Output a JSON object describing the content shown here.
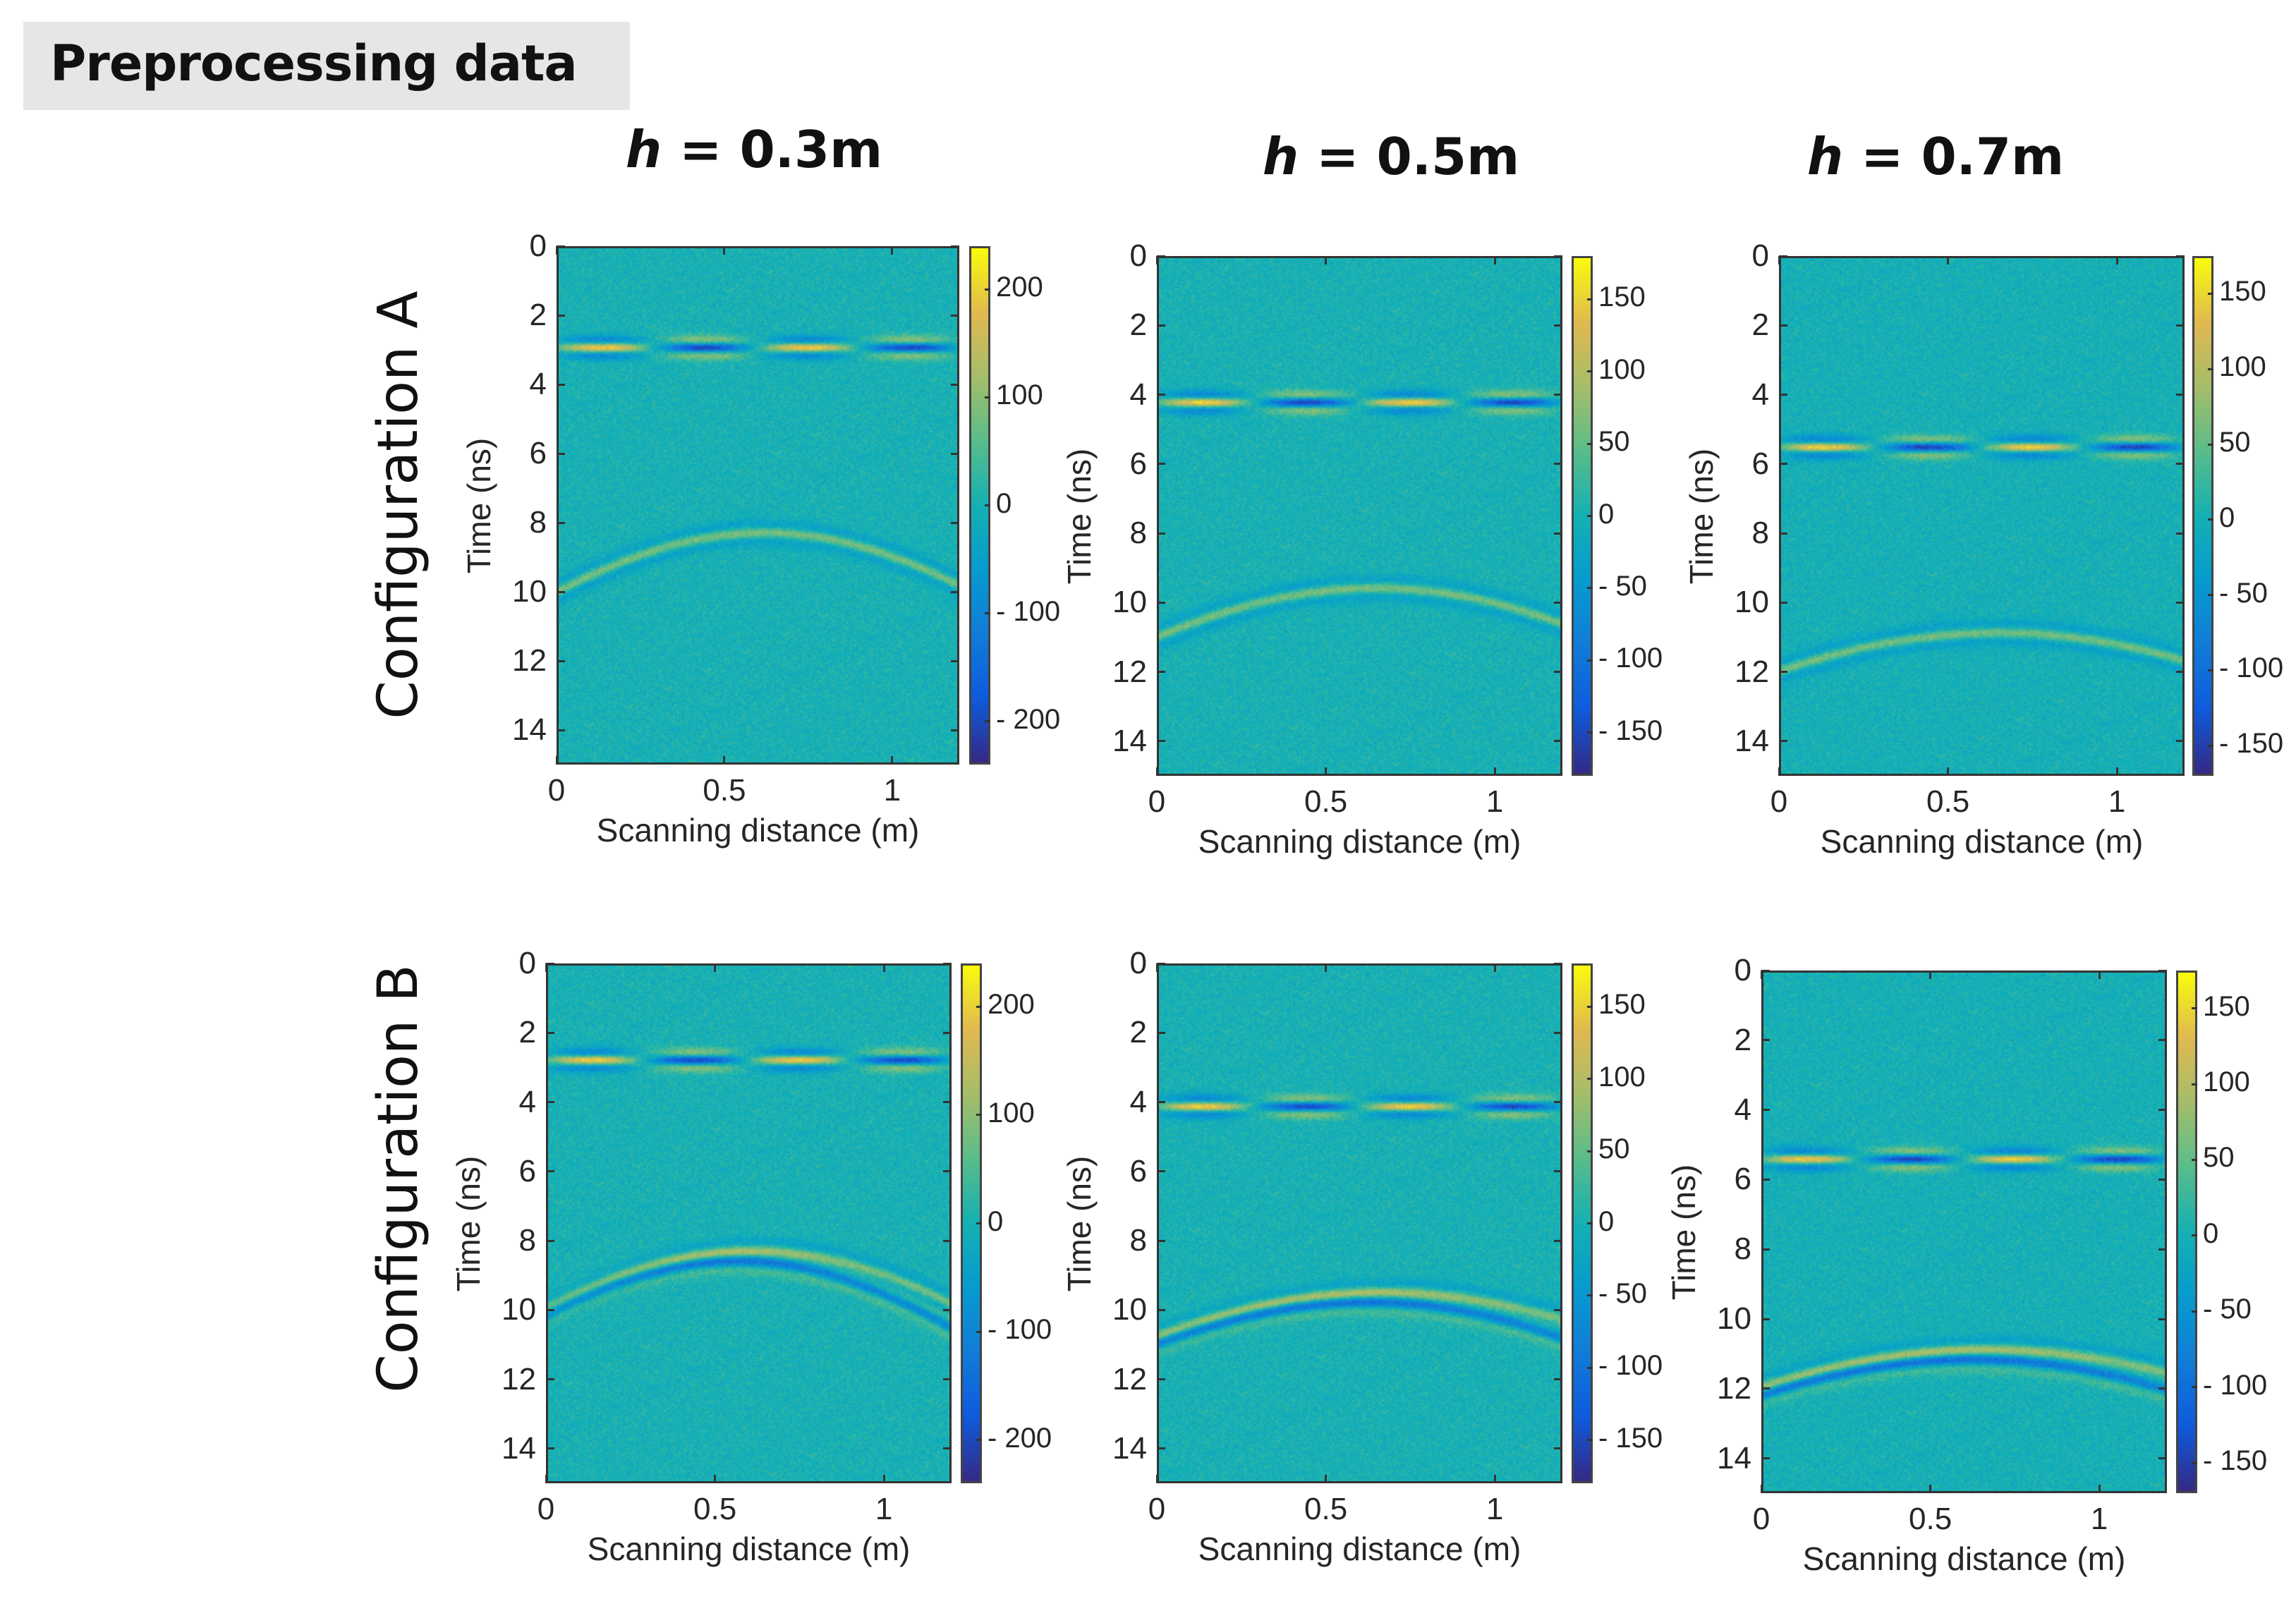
{
  "header": {
    "title": "Preprocessing data"
  },
  "columns": [
    {
      "var": "h",
      "rest": " = 0.3m"
    },
    {
      "var": "h",
      "rest": " = 0.5m"
    },
    {
      "var": "h",
      "rest": " = 0.7m"
    }
  ],
  "rows": [
    "Configuration A",
    "Configuration B"
  ],
  "chart_data": {
    "type": "heatmap",
    "title": "Preprocessing data",
    "xlabel": "Scanning distance (m)",
    "ylabel": "Time (ns)",
    "xlim": [
      0,
      1.2
    ],
    "ylim": [
      15,
      0
    ],
    "xticks": [
      "0",
      "0.5",
      "1"
    ],
    "xtick_values": [
      0,
      0.5,
      1
    ],
    "yticks": [
      "0",
      "2",
      "4",
      "6",
      "8",
      "10",
      "12",
      "14"
    ],
    "ytick_values": [
      0,
      2,
      4,
      6,
      8,
      10,
      12,
      14
    ],
    "panels": [
      {
        "config": "A",
        "h": 0.3,
        "clim": [
          -240,
          240
        ],
        "cticks": [
          "200",
          "100",
          "0",
          "- 100",
          "- 200"
        ],
        "ctick_values": [
          200,
          100,
          0,
          -100,
          -200
        ],
        "direct_wave_ns": 2.9,
        "apex_x": 0.62,
        "apex_ns": 8.3,
        "edge_ns": 10.0,
        "double": false
      },
      {
        "config": "A",
        "h": 0.5,
        "clim": [
          -180,
          180
        ],
        "cticks": [
          "150",
          "100",
          "50",
          "0",
          "- 50",
          "- 100",
          "- 150"
        ],
        "ctick_values": [
          150,
          100,
          50,
          0,
          -50,
          -100,
          -150
        ],
        "direct_wave_ns": 4.2,
        "apex_x": 0.65,
        "apex_ns": 9.6,
        "edge_ns": 11.0,
        "double": false
      },
      {
        "config": "A",
        "h": 0.7,
        "clim": [
          -170,
          175
        ],
        "cticks": [
          "150",
          "100",
          "50",
          "0",
          "- 50",
          "- 100",
          "- 150"
        ],
        "ctick_values": [
          150,
          100,
          50,
          0,
          -50,
          -100,
          -150
        ],
        "direct_wave_ns": 5.5,
        "apex_x": 0.65,
        "apex_ns": 10.9,
        "edge_ns": 12.0,
        "double": false
      },
      {
        "config": "B",
        "h": 0.3,
        "clim": [
          -240,
          240
        ],
        "cticks": [
          "200",
          "100",
          "0",
          "- 100",
          "- 200"
        ],
        "ctick_values": [
          200,
          100,
          0,
          -100,
          -200
        ],
        "direct_wave_ns": 2.75,
        "apex_x": 0.62,
        "apex_ns": 8.3,
        "edge_ns": 10.0,
        "double": true
      },
      {
        "config": "B",
        "h": 0.5,
        "clim": [
          -180,
          180
        ],
        "cticks": [
          "150",
          "100",
          "50",
          "0",
          "- 50",
          "- 100",
          "- 150"
        ],
        "ctick_values": [
          150,
          100,
          50,
          0,
          -50,
          -100,
          -150
        ],
        "direct_wave_ns": 4.1,
        "apex_x": 0.68,
        "apex_ns": 9.5,
        "edge_ns": 10.8,
        "double": true
      },
      {
        "config": "B",
        "h": 0.7,
        "clim": [
          -170,
          175
        ],
        "cticks": [
          "150",
          "100",
          "50",
          "0",
          "- 50",
          "- 100",
          "- 150"
        ],
        "ctick_values": [
          150,
          100,
          50,
          0,
          -50,
          -100,
          -150
        ],
        "direct_wave_ns": 5.4,
        "apex_x": 0.68,
        "apex_ns": 10.9,
        "edge_ns": 12.0,
        "double": true
      }
    ]
  }
}
